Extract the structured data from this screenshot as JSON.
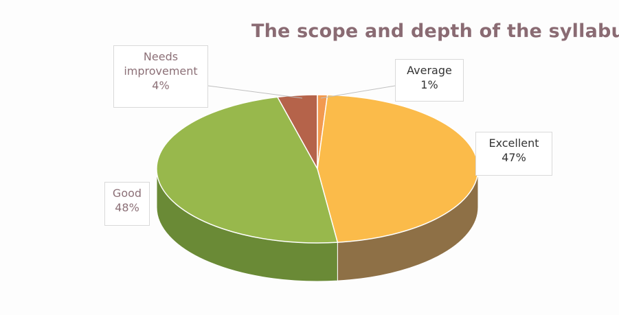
{
  "chart_data": {
    "type": "pie",
    "title": "The scope and depth of the syllabus",
    "three_d": true,
    "categories": [
      "Needs improvement",
      "Average",
      "Excellent",
      "Good"
    ],
    "values": [
      4,
      1,
      47,
      48
    ],
    "value_labels": [
      "4%",
      "1%",
      "47%",
      "48%"
    ],
    "label_lines": [
      [
        "Needs",
        "improvement"
      ],
      [
        "Average"
      ],
      [
        "Excellent"
      ],
      [
        "Good"
      ]
    ],
    "colors": [
      "#b5634a",
      "#f29a50",
      "#fbbb4a",
      "#98b84c"
    ],
    "side_colors": [
      "#7a4230",
      "#b06c37",
      "#8e7046",
      "#6a8a36"
    ],
    "label_text_colors": [
      "#8c7077",
      "#333333",
      "#333333",
      "#8c7077"
    ],
    "legend": "none"
  }
}
